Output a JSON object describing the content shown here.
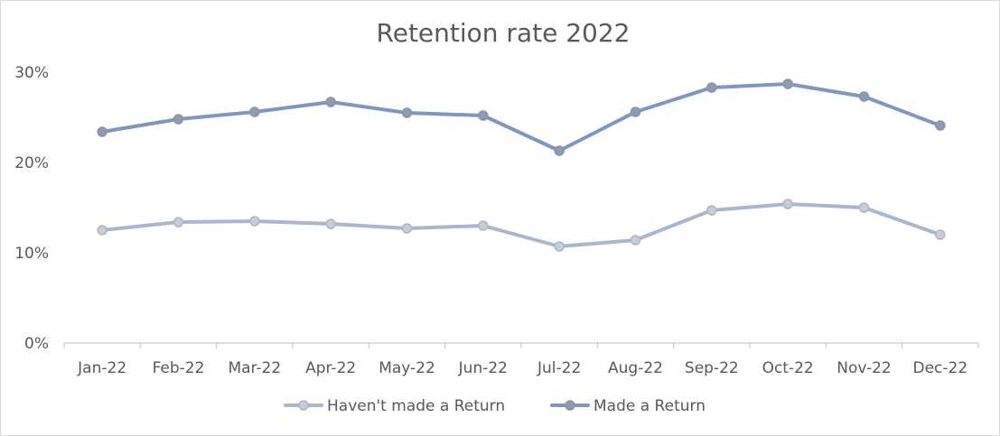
{
  "chart_data": {
    "type": "line",
    "title": "Retention rate 2022",
    "xlabel": "",
    "ylabel": "",
    "categories": [
      "Jan-22",
      "Feb-22",
      "Mar-22",
      "Apr-22",
      "May-22",
      "Jun-22",
      "Jul-22",
      "Aug-22",
      "Sep-22",
      "Oct-22",
      "Nov-22",
      "Dec-22"
    ],
    "y_ticks": [
      "0%",
      "10%",
      "20%",
      "30%"
    ],
    "ylim": [
      0,
      30
    ],
    "grid": false,
    "legend_position": "bottom",
    "series": [
      {
        "name": "Haven't made a Return",
        "color": "#a9b7cc",
        "marker_color": "#c9cdd3",
        "values": [
          12.5,
          13.4,
          13.5,
          13.2,
          12.7,
          13.0,
          10.7,
          11.4,
          14.7,
          15.4,
          15.0,
          12.0
        ]
      },
      {
        "name": "Made a Return",
        "color": "#7f96c0",
        "marker_color": "#969aa3",
        "values": [
          23.4,
          24.8,
          25.6,
          26.7,
          25.5,
          25.2,
          21.3,
          25.6,
          28.3,
          28.7,
          27.3,
          24.1
        ]
      }
    ]
  }
}
